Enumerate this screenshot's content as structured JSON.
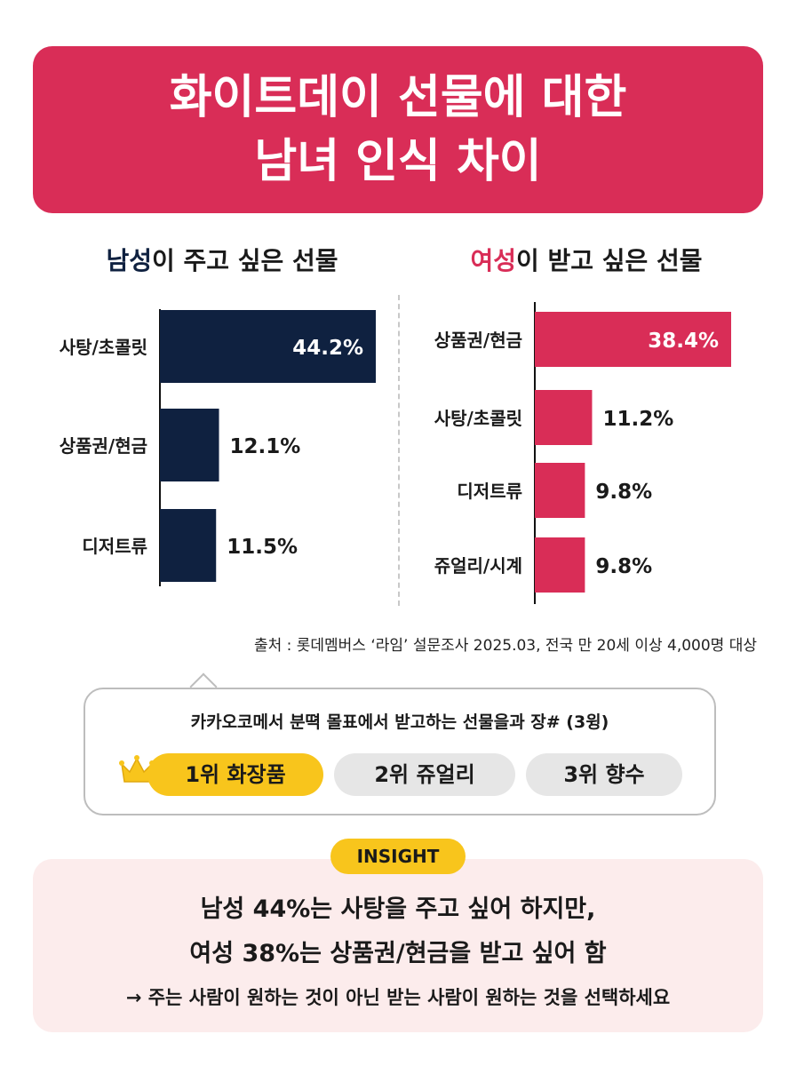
{
  "header": {
    "line1": "화이트데이 선물에 대한",
    "line2": "남녀 인식 차이"
  },
  "colors": {
    "accent": "#d92d57",
    "navy": "#0f2140",
    "gold": "#f8c51c",
    "pill_gray": "#e6e6e6",
    "insight_bg": "#fcecec"
  },
  "chart_data": [
    {
      "type": "bar",
      "orientation": "horizontal",
      "title_highlight": "남성",
      "title_rest": "이 주고 싶은 선물",
      "categories": [
        "사탕/초콜릿",
        "상품권/현금",
        "디저트류"
      ],
      "values": [
        44.2,
        12.1,
        11.5
      ],
      "value_labels": [
        "44.2%",
        "12.1%",
        "11.5%"
      ],
      "unit": "%",
      "color": "#0f2140"
    },
    {
      "type": "bar",
      "orientation": "horizontal",
      "title_highlight": "여성",
      "title_rest": "이 받고 싶은 선물",
      "categories": [
        "상품권/현금",
        "사탕/초콜릿",
        "디저트류",
        "쥬얼리/시계"
      ],
      "values": [
        38.4,
        11.2,
        9.8,
        9.8
      ],
      "value_labels": [
        "38.4%",
        "11.2%",
        "9.8%",
        "9.8%"
      ],
      "unit": "%",
      "color": "#d92d57"
    }
  ],
  "source": "출처 : 롯데멤버스 ‘라임’ 설문조사 2025.03, 전국 만 20세 이상 4,000명 대상",
  "bubble": {
    "question": "카카오코메서 분뗙 몰표에서 받고하는 선물을과 장# (3윙)",
    "ranks": [
      "1위 화장품",
      "2위 쥬얼리",
      "3위 향수"
    ]
  },
  "insight": {
    "tag": "INSIGHT",
    "line1": "남성 44%는 사탕을 주고 싶어 하지만,",
    "line2": "여성 38%는 상품권/현금을 받고 싶어 함",
    "line3": "→ 주는 사람이 원하는 것이 아닌 받는 사람이 원하는 것을 선택하세요"
  }
}
